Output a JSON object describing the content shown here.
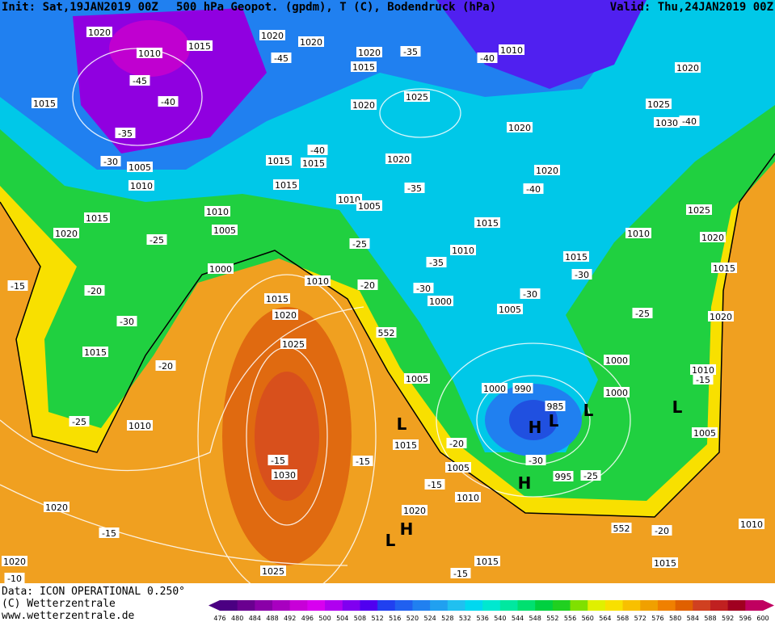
{
  "header": {
    "init": "Init: Sat,19JAN2019 00Z",
    "title": "500 hPa Geopot. (gpdm), T (C), Bodendruck (hPa)",
    "valid": "Valid: Thu,24JAN2019 00Z"
  },
  "map": {
    "labels": [
      "1020",
      "1010",
      "1015",
      "1020",
      "1020",
      "1020",
      "1015",
      "-45",
      "-35",
      "-40",
      "1010",
      "1020",
      "1015",
      "-45",
      "-40",
      "1025",
      "1020",
      "-35",
      "1025",
      "1030",
      "-40",
      "1020",
      "-30",
      "1005",
      "1010",
      "1015",
      "1015",
      "-40",
      "1020",
      "1020",
      "1015",
      "1010",
      "1005",
      "-35",
      "-40",
      "1010",
      "1015",
      "1005",
      "1020",
      "-25",
      "-25",
      "1015",
      "1025",
      "1010",
      "1020",
      "1015",
      "1000",
      "-35",
      "-30",
      "1010",
      "1010",
      "-20",
      "1015",
      "-15",
      "-20",
      "-30",
      "1015",
      "1000",
      "-30",
      "1005",
      "-25",
      "1020",
      "1020",
      "-30",
      "552",
      "1025",
      "1015",
      "-20",
      "1000",
      "1010",
      "-15",
      "1005",
      "1000",
      "990",
      "1000",
      "985",
      "1010",
      "-25",
      "1005",
      "1015",
      "-20",
      "-15",
      "-15",
      "-30",
      "1030",
      "1005",
      "995",
      "-25",
      "-15",
      "1010",
      "1020",
      "1020",
      "552",
      "-20",
      "1010",
      "-15",
      "1020",
      "1015",
      "1015",
      "1025",
      "-15",
      "-10"
    ],
    "centers": [
      "H",
      "L",
      "L",
      "L",
      "L",
      "H",
      "H",
      "L"
    ]
  },
  "footer": {
    "data": "Data: ICON OPERATIONAL 0.250°",
    "copyright": "(C) Wetterzentrale",
    "url": "www.wetterzentrale.de"
  },
  "colorbar": {
    "levels": [
      476,
      480,
      484,
      488,
      492,
      496,
      500,
      504,
      508,
      512,
      516,
      520,
      524,
      528,
      532,
      536,
      540,
      544,
      548,
      552,
      556,
      560,
      564,
      568,
      572,
      576,
      580,
      584,
      588,
      592,
      596,
      600
    ],
    "colors": [
      "#4b0082",
      "#6a0090",
      "#8a00a8",
      "#a800c0",
      "#c800d8",
      "#d800f0",
      "#b000f0",
      "#8000f0",
      "#5000f0",
      "#2040f0",
      "#2060f0",
      "#2080f0",
      "#20a0f0",
      "#20c0f0",
      "#00d8f0",
      "#00e8d0",
      "#00e8a0",
      "#00e070",
      "#00d040",
      "#20d020",
      "#80e000",
      "#e0f000",
      "#f8e000",
      "#f8c000",
      "#f0a000",
      "#f08000",
      "#e06000",
      "#d04020",
      "#c02020",
      "#a00020",
      "#c00060"
    ]
  }
}
